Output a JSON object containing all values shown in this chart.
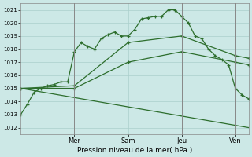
{
  "xlabel": "Pression niveau de la mer( hPa )",
  "background_color": "#cce8e6",
  "grid_color": "#aacfcc",
  "line_color": "#2d6e2d",
  "ylim": [
    1011.5,
    1021.5
  ],
  "yticks": [
    1012,
    1013,
    1014,
    1015,
    1016,
    1017,
    1018,
    1019,
    1020,
    1021
  ],
  "xlim": [
    0,
    102
  ],
  "vline_positions": [
    24,
    72,
    96
  ],
  "xtick_positions": [
    24,
    48,
    72,
    96
  ],
  "xtick_labels": [
    "Mer",
    "Sam",
    "Jeu",
    "Ven"
  ],
  "series": [
    {
      "x": [
        0,
        3,
        6,
        9,
        12,
        15,
        18,
        21,
        24,
        27,
        30,
        33,
        36,
        39,
        42,
        45,
        48,
        51,
        54,
        57,
        60,
        63,
        66,
        69,
        72,
        75,
        78,
        81,
        84,
        87,
        90,
        93,
        96,
        99,
        102
      ],
      "y": [
        1013.0,
        1013.8,
        1014.7,
        1015.0,
        1015.2,
        1015.3,
        1015.5,
        1015.5,
        1017.8,
        1018.5,
        1018.2,
        1018.0,
        1018.8,
        1019.1,
        1019.3,
        1019.0,
        1019.0,
        1019.5,
        1020.3,
        1020.4,
        1020.5,
        1020.5,
        1021.0,
        1021.0,
        1020.5,
        1020.0,
        1019.0,
        1018.8,
        1018.0,
        1017.5,
        1017.2,
        1016.8,
        1015.0,
        1014.5,
        1014.2
      ]
    },
    {
      "x": [
        0,
        24,
        48,
        72,
        96,
        102
      ],
      "y": [
        1015.0,
        1015.2,
        1018.5,
        1019.0,
        1017.5,
        1017.3
      ]
    },
    {
      "x": [
        0,
        24,
        48,
        72,
        96,
        102
      ],
      "y": [
        1015.0,
        1015.0,
        1017.0,
        1017.8,
        1017.0,
        1016.8
      ]
    },
    {
      "x": [
        0,
        102
      ],
      "y": [
        1015.0,
        1012.0
      ]
    }
  ],
  "series_markers": [
    true,
    true,
    true,
    false
  ]
}
